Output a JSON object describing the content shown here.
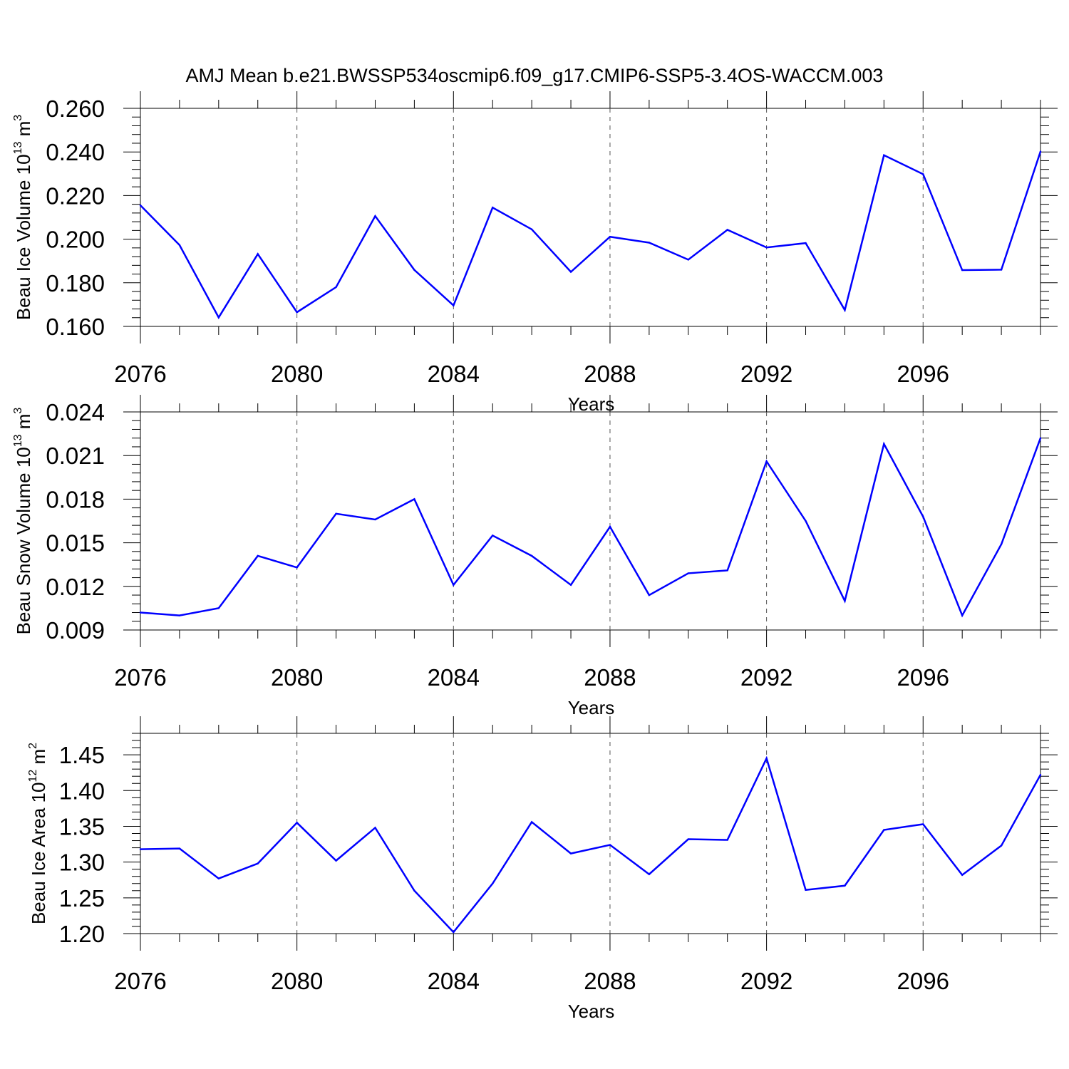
{
  "chart_data": {
    "title": "AMJ Mean b.e21.BWSSP534oscmip6.f09_g17.CMIP6-SSP5-3.4OS-WACCM.003",
    "panels": [
      {
        "type": "line",
        "ylabel": {
          "text": "Beau Ice Volume 10",
          "sup": "13",
          "unit": " m",
          "unit_sup": "3"
        },
        "xlabel": "Years",
        "xlim": [
          2076,
          2099
        ],
        "ylim": [
          0.16,
          0.26
        ],
        "xticks": [
          "2076",
          "2080",
          "2084",
          "2088",
          "2092",
          "2096"
        ],
        "yticks": [
          "0.160",
          "0.180",
          "0.200",
          "0.220",
          "0.240",
          "0.260"
        ],
        "line_color": "#0000ff",
        "x": [
          2076,
          2077,
          2078,
          2079,
          2080,
          2081,
          2082,
          2083,
          2084,
          2085,
          2086,
          2087,
          2088,
          2089,
          2090,
          2091,
          2092,
          2093,
          2094,
          2095,
          2096,
          2097,
          2098,
          2099
        ],
        "values": [
          0.2155,
          0.1973,
          0.1641,
          0.1932,
          0.1665,
          0.178,
          0.2106,
          0.1859,
          0.1696,
          0.2145,
          0.2045,
          0.185,
          0.2011,
          0.1984,
          0.1906,
          0.2043,
          0.1962,
          0.1982,
          0.1675,
          0.2385,
          0.2298,
          0.1858,
          0.186,
          0.2402
        ]
      },
      {
        "type": "line",
        "ylabel": {
          "text": "Beau Snow Volume 10",
          "sup": "13",
          "unit": " m",
          "unit_sup": "3"
        },
        "xlabel": "Years",
        "xlim": [
          2076,
          2099
        ],
        "ylim": [
          0.009,
          0.024
        ],
        "xticks": [
          "2076",
          "2080",
          "2084",
          "2088",
          "2092",
          "2096"
        ],
        "yticks": [
          "0.009",
          "0.012",
          "0.015",
          "0.018",
          "0.021",
          "0.024"
        ],
        "line_color": "#0000ff",
        "x": [
          2076,
          2077,
          2078,
          2079,
          2080,
          2081,
          2082,
          2083,
          2084,
          2085,
          2086,
          2087,
          2088,
          2089,
          2090,
          2091,
          2092,
          2093,
          2094,
          2095,
          2096,
          2097,
          2098,
          2099
        ],
        "values": [
          0.0102,
          0.01,
          0.0105,
          0.0141,
          0.0133,
          0.017,
          0.0166,
          0.018,
          0.0121,
          0.0155,
          0.0141,
          0.0121,
          0.0161,
          0.0114,
          0.0129,
          0.0131,
          0.0206,
          0.0165,
          0.011,
          0.0218,
          0.0168,
          0.01,
          0.0149,
          0.0222
        ]
      },
      {
        "type": "line",
        "ylabel": {
          "text": "Beau Ice Area 10",
          "sup": "12",
          "unit": " m",
          "unit_sup": "2"
        },
        "xlabel": "Years",
        "xlim": [
          2076,
          2099
        ],
        "ylim": [
          1.2,
          1.48
        ],
        "xticks": [
          "2076",
          "2080",
          "2084",
          "2088",
          "2092",
          "2096"
        ],
        "yticks": [
          "1.20",
          "1.25",
          "1.30",
          "1.35",
          "1.40",
          "1.45"
        ],
        "line_color": "#0000ff",
        "x": [
          2076,
          2077,
          2078,
          2079,
          2080,
          2081,
          2082,
          2083,
          2084,
          2085,
          2086,
          2087,
          2088,
          2089,
          2090,
          2091,
          2092,
          2093,
          2094,
          2095,
          2096,
          2097,
          2098,
          2099
        ],
        "values": [
          1.318,
          1.319,
          1.277,
          1.298,
          1.355,
          1.302,
          1.348,
          1.26,
          1.202,
          1.27,
          1.356,
          1.312,
          1.324,
          1.283,
          1.332,
          1.331,
          1.445,
          1.261,
          1.267,
          1.345,
          1.353,
          1.282,
          1.323,
          1.422
        ]
      }
    ]
  }
}
